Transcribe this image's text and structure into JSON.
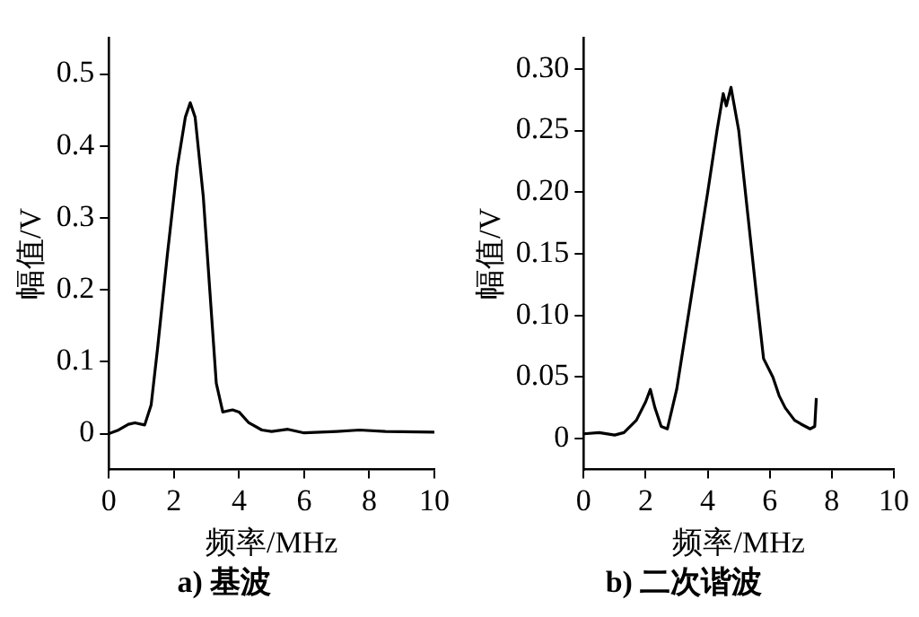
{
  "chart_data": [
    {
      "type": "line",
      "title": "a) 基波",
      "xlabel": "频率/MHz",
      "ylabel": "幅值/V",
      "xlim": [
        0,
        10
      ],
      "xticks": [
        0,
        2,
        4,
        6,
        8,
        10
      ],
      "ylim": [
        -0.05,
        0.55
      ],
      "yticks": [
        0,
        0.1,
        0.2,
        0.3,
        0.4,
        0.5
      ],
      "grid": false,
      "legend": false,
      "marker": "none",
      "line_style": "solid",
      "series": [
        {
          "color": "#000000",
          "x": [
            0,
            0.3,
            0.6,
            0.8,
            1.1,
            1.3,
            1.5,
            1.8,
            2.1,
            2.35,
            2.5,
            2.65,
            2.9,
            3.1,
            3.3,
            3.5,
            3.8,
            4.0,
            4.3,
            4.7,
            5.0,
            5.5,
            6.0,
            7.0,
            7.7,
            8.5,
            10
          ],
          "values": [
            0,
            0.005,
            0.013,
            0.015,
            0.012,
            0.04,
            0.12,
            0.25,
            0.37,
            0.44,
            0.46,
            0.44,
            0.33,
            0.2,
            0.07,
            0.03,
            0.033,
            0.03,
            0.015,
            0.005,
            0.003,
            0.006,
            0.001,
            0.003,
            0.005,
            0.003,
            0.002
          ]
        }
      ]
    },
    {
      "type": "line",
      "title": "b) 二次谐波",
      "xlabel": "频率/MHz",
      "ylabel": "幅值/V",
      "xlim": [
        0,
        10
      ],
      "xticks": [
        0,
        2,
        4,
        6,
        8,
        10
      ],
      "ylim": [
        -0.025,
        0.325
      ],
      "yticks": [
        0,
        {
          "value": 0.05,
          "label": "0.05"
        },
        {
          "value": 0.1,
          "label": "0.10"
        },
        {
          "value": 0.15,
          "label": "0.15"
        },
        {
          "value": 0.2,
          "label": "0.20"
        },
        {
          "value": 0.25,
          "label": "0.25"
        },
        {
          "value": 0.3,
          "label": "0.30"
        }
      ],
      "grid": false,
      "legend": false,
      "marker": "none",
      "line_style": "solid",
      "series": [
        {
          "color": "#000000",
          "x": [
            0,
            0.5,
            1.0,
            1.3,
            1.7,
            2.0,
            2.15,
            2.3,
            2.5,
            2.7,
            3.0,
            3.5,
            4.0,
            4.3,
            4.5,
            4.6,
            4.75,
            5.0,
            5.3,
            5.6,
            5.8,
            6.1,
            6.3,
            6.5,
            6.8,
            7.0,
            7.3,
            7.45,
            7.5
          ],
          "values": [
            0.004,
            0.005,
            0.003,
            0.005,
            0.015,
            0.03,
            0.04,
            0.025,
            0.01,
            0.008,
            0.04,
            0.12,
            0.2,
            0.25,
            0.28,
            0.27,
            0.285,
            0.25,
            0.18,
            0.11,
            0.065,
            0.05,
            0.035,
            0.025,
            0.015,
            0.012,
            0.008,
            0.01,
            0.033
          ]
        }
      ]
    }
  ]
}
